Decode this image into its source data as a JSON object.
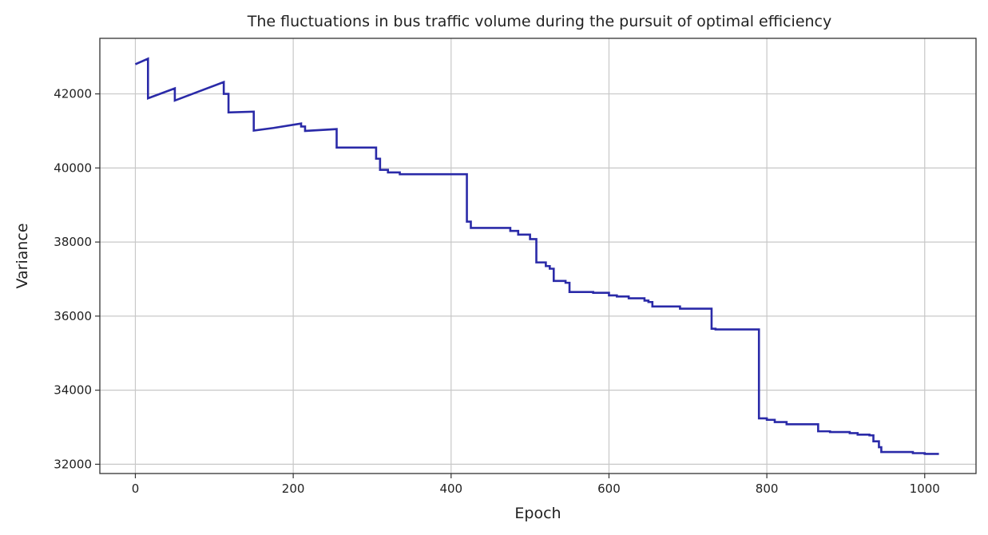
{
  "chart_data": {
    "type": "line",
    "title": "The fluctuations in bus traffic volume during the pursuit of optimal efficiency",
    "xlabel": "Epoch",
    "ylabel": "Variance",
    "xlim": [
      -45,
      1065
    ],
    "ylim": [
      31750,
      43500
    ],
    "xticks": [
      0,
      200,
      400,
      600,
      800,
      1000
    ],
    "yticks": [
      32000,
      34000,
      36000,
      38000,
      40000,
      42000
    ],
    "xtick_labels": [
      "0",
      "200",
      "400",
      "600",
      "800",
      "1000"
    ],
    "ytick_labels": [
      "32000",
      "34000",
      "36000",
      "38000",
      "40000",
      "42000"
    ],
    "grid": true,
    "legend": "none",
    "colors": {
      "series": "#2a2aa8",
      "grid": "#c8c8c8",
      "axes": "#333333"
    },
    "series": [
      {
        "x": [
          0,
          16,
          16,
          50,
          50,
          112,
          112,
          118,
          118,
          150,
          150,
          175,
          175,
          210,
          210,
          215,
          215,
          255,
          255,
          305,
          305,
          310,
          310,
          320,
          320,
          335,
          335,
          420,
          420,
          425,
          425,
          475,
          475,
          485,
          485,
          500,
          500,
          508,
          508,
          520,
          520,
          525,
          525,
          530,
          530,
          545,
          545,
          550,
          550,
          580,
          580,
          600,
          600,
          610,
          610,
          625,
          625,
          645,
          645,
          650,
          650,
          655,
          655,
          690,
          690,
          730,
          730,
          735,
          735,
          790,
          790,
          800,
          800,
          810,
          810,
          825,
          825,
          865,
          865,
          880,
          880,
          905,
          905,
          915,
          915,
          930,
          930,
          935,
          935,
          942,
          942,
          945,
          945,
          985,
          985,
          1000,
          1000,
          1018
        ],
        "y": [
          42800,
          42950,
          41880,
          42150,
          41820,
          42320,
          42000,
          42000,
          41500,
          41520,
          41010,
          41080,
          41080,
          41200,
          41120,
          41120,
          41000,
          41050,
          40550,
          40550,
          40250,
          40250,
          39950,
          39950,
          39880,
          39880,
          39830,
          39830,
          38550,
          38550,
          38380,
          38380,
          38300,
          38300,
          38200,
          38200,
          38080,
          38080,
          37450,
          37450,
          37350,
          37350,
          37280,
          37280,
          36950,
          36950,
          36900,
          36900,
          36650,
          36650,
          36630,
          36630,
          36560,
          36560,
          36530,
          36530,
          36480,
          36480,
          36420,
          36420,
          36380,
          36380,
          36260,
          36260,
          36200,
          36200,
          35660,
          35660,
          35640,
          35640,
          33240,
          33240,
          33200,
          33200,
          33140,
          33140,
          33080,
          33080,
          32890,
          32890,
          32870,
          32870,
          32840,
          32840,
          32800,
          32800,
          32780,
          32780,
          32620,
          32620,
          32460,
          32460,
          32330,
          32330,
          32300,
          32300,
          32280,
          32280
        ]
      }
    ]
  }
}
